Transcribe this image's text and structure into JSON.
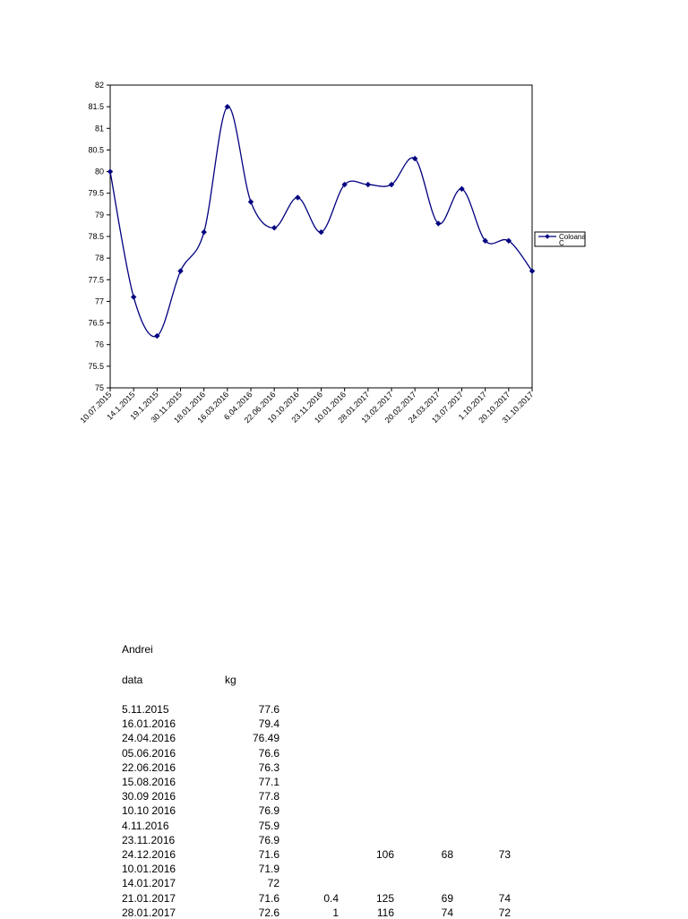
{
  "chart_data": {
    "type": "line",
    "title": "",
    "xlabel": "",
    "ylabel": "",
    "ylim": [
      75,
      82
    ],
    "yticks": [
      "75",
      "75.5",
      "76",
      "76.5",
      "77",
      "77.5",
      "78",
      "78.5",
      "79",
      "79.5",
      "80",
      "80.5",
      "81",
      "81.5",
      "82"
    ],
    "grid": false,
    "smooth": true,
    "marker": "diamond",
    "legend_position": "right",
    "categories": [
      "10.07.2015",
      "14.1.2015",
      "19.1.2015",
      "30.11.2015",
      "18.01.2016",
      "16.03.2016",
      "6.04.2016",
      "22.06.2016",
      "10.10.2016",
      "23.11.2016",
      "10.01.2016",
      "28.01.2017",
      "13.02.2017",
      "20.02.2017",
      "24.03.2017",
      "13.07.2017",
      "1.10.2017",
      "20.10.2017",
      "31.10.2017"
    ],
    "series": [
      {
        "name": "Coloana C",
        "color": "#000080",
        "values": [
          80.0,
          77.1,
          76.2,
          77.7,
          78.6,
          81.5,
          79.3,
          78.7,
          79.4,
          78.6,
          79.7,
          79.7,
          79.7,
          80.3,
          78.8,
          79.6,
          78.4,
          78.4,
          77.7
        ]
      }
    ]
  },
  "sheet": {
    "name": "Andrei",
    "col_date": "data",
    "col_kg": "kg",
    "rows": [
      {
        "date": "5.11.2015",
        "kg": "77.6",
        "c": "",
        "d": "",
        "e": "",
        "f": ""
      },
      {
        "date": "16.01.2016",
        "kg": "79.4",
        "c": "",
        "d": "",
        "e": "",
        "f": ""
      },
      {
        "date": "24.04.2016",
        "kg": "76.49",
        "c": "",
        "d": "",
        "e": "",
        "f": ""
      },
      {
        "date": "05.06.2016",
        "kg": "76.6",
        "c": "",
        "d": "",
        "e": "",
        "f": ""
      },
      {
        "date": "22.06.2016",
        "kg": "76.3",
        "c": "",
        "d": "",
        "e": "",
        "f": ""
      },
      {
        "date": "15.08.2016",
        "kg": "77.1",
        "c": "",
        "d": "",
        "e": "",
        "f": ""
      },
      {
        "date": "30.09 2016",
        "kg": "77.8",
        "c": "",
        "d": "",
        "e": "",
        "f": ""
      },
      {
        "date": "10.10 2016",
        "kg": "76.9",
        "c": "",
        "d": "",
        "e": "",
        "f": ""
      },
      {
        "date": "4.11.2016",
        "kg": "75.9",
        "c": "",
        "d": "",
        "e": "",
        "f": ""
      },
      {
        "date": "23.11.2016",
        "kg": "76.9",
        "c": "",
        "d": "",
        "e": "",
        "f": ""
      },
      {
        "date": "24.12.2016",
        "kg": "71.6",
        "c": "",
        "d": "106",
        "e": "68",
        "f": "73"
      },
      {
        "date": "10.01.2016",
        "kg": "71.9",
        "c": "",
        "d": "",
        "e": "",
        "f": ""
      },
      {
        "date": "14.01.2017",
        "kg": "72",
        "c": "",
        "d": "",
        "e": "",
        "f": ""
      },
      {
        "date": "21.01.2017",
        "kg": "71.6",
        "c": "0.4",
        "d": "125",
        "e": "69",
        "f": "74"
      },
      {
        "date": "28.01.2017",
        "kg": "72.6",
        "c": "1",
        "d": "116",
        "e": "74",
        "f": "72"
      }
    ]
  }
}
